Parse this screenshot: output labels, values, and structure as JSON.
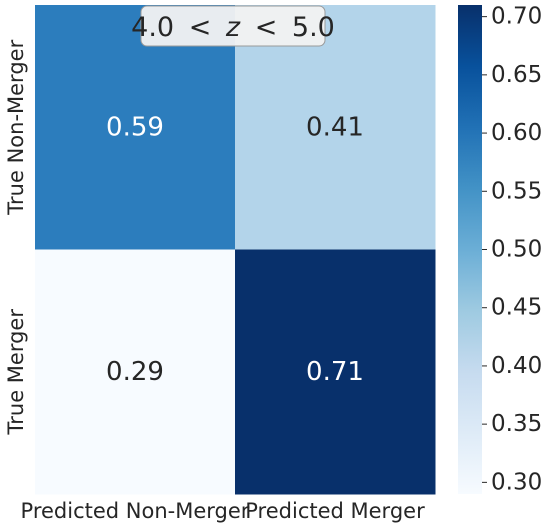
{
  "chart_data": {
    "type": "heatmap",
    "title_parts": [
      "4.0",
      "<",
      "z",
      "<",
      "5.0"
    ],
    "row_labels": [
      "True Non-Merger",
      "True Merger"
    ],
    "col_labels": [
      "Predicted Non-Merger",
      "Predicted Merger"
    ],
    "values": [
      [
        0.59,
        0.41
      ],
      [
        0.29,
        0.71
      ]
    ],
    "value_labels": [
      [
        "0.59",
        "0.41"
      ],
      [
        "0.29",
        "0.71"
      ]
    ],
    "colormap": "Blues",
    "colorbar": {
      "range": [
        0.29,
        0.71
      ],
      "ticks": [
        0.3,
        0.35,
        0.4,
        0.45,
        0.5,
        0.55,
        0.6,
        0.65,
        0.7
      ],
      "tick_labels": [
        "0.30",
        "0.35",
        "0.40",
        "0.45",
        "0.50",
        "0.55",
        "0.60",
        "0.65",
        "0.70"
      ]
    },
    "colors": {
      "0.29": "#f7fbff",
      "0.41": "#b3d4ea",
      "0.59": "#2c7dbd",
      "0.71": "#08306b",
      "dark_text": "#262626",
      "light_text": "#ffffff"
    }
  }
}
